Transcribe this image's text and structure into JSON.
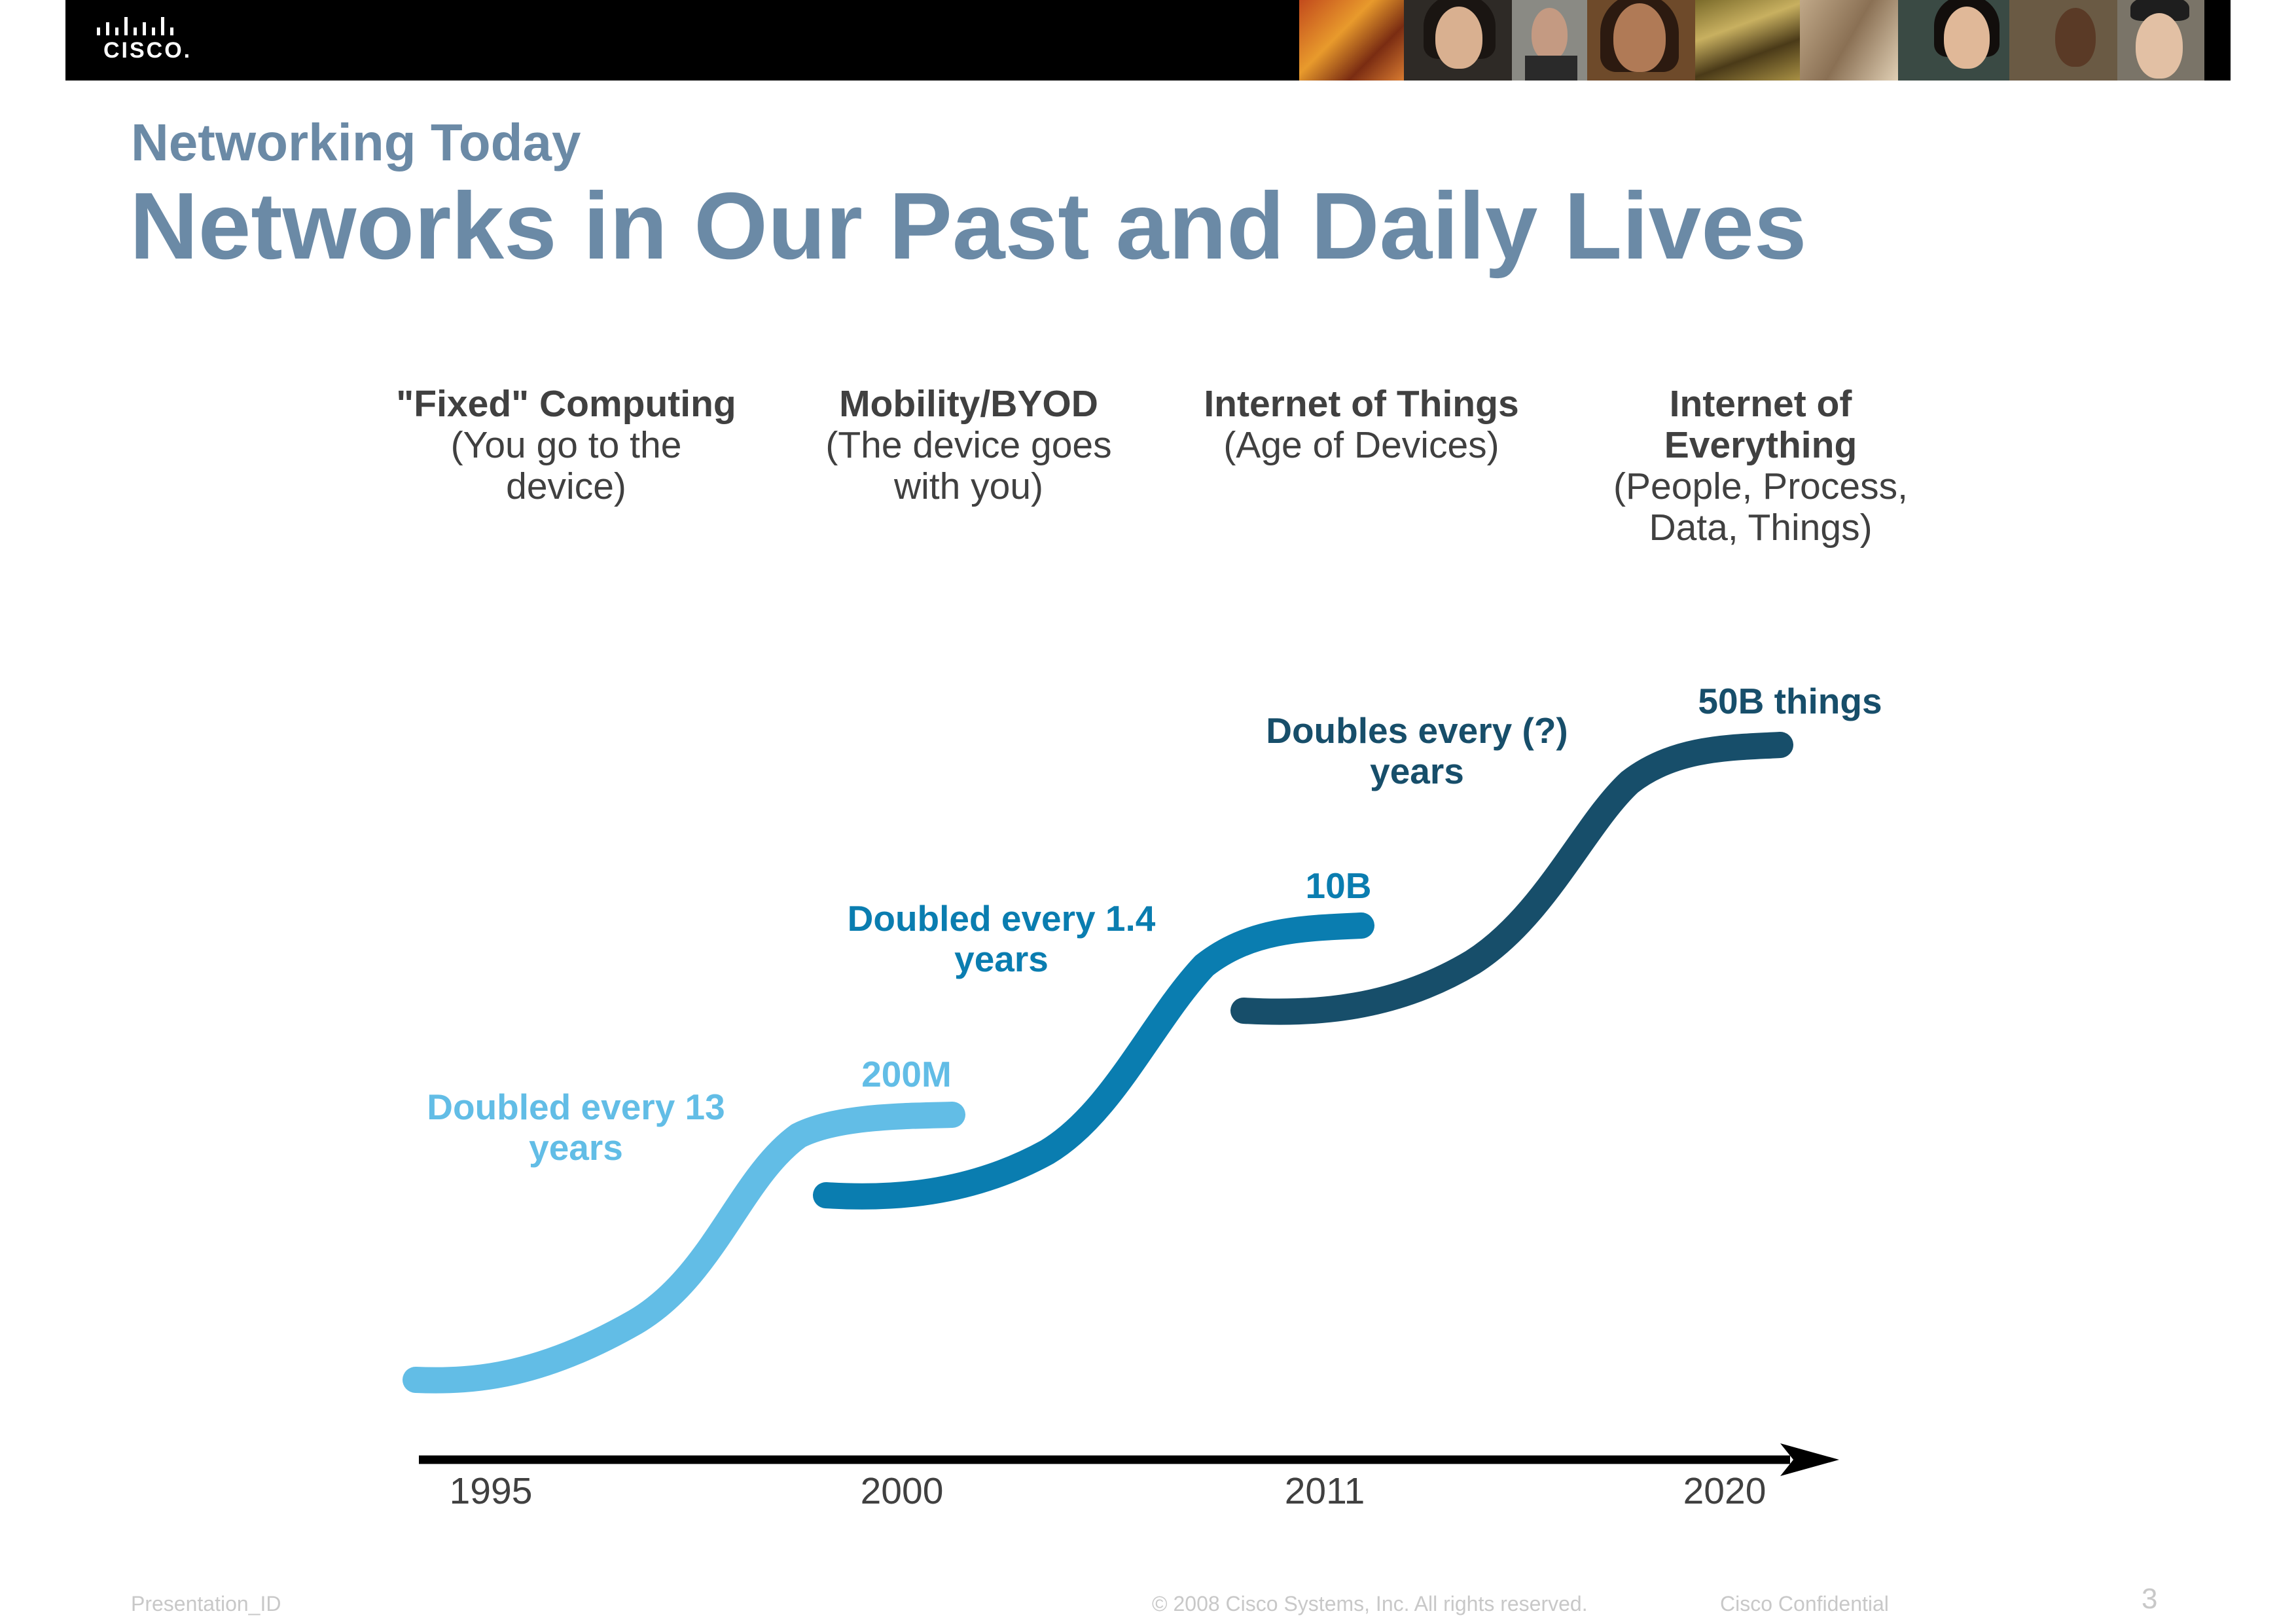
{
  "brand": {
    "logo_text": "CISCO."
  },
  "header": {
    "subtitle": "Networking Today",
    "title": "Networks in Our Past and Daily Lives"
  },
  "eras": [
    {
      "heading": "\"Fixed\" Computing",
      "description": "(You go to the device)"
    },
    {
      "heading": "Mobility/BYOD",
      "description": "(The device goes with you)"
    },
    {
      "heading": "Internet of Things",
      "description": "(Age of Devices)"
    },
    {
      "heading": "Internet of Everything",
      "description": "(People, Process, Data, Things)"
    }
  ],
  "chart_data": {
    "type": "line",
    "x_ticks": [
      "1995",
      "2000",
      "2011",
      "2020"
    ],
    "series": [
      {
        "label_note": "Doubled every 13 years",
        "end_value": "200M",
        "color": "#62bde6"
      },
      {
        "label_note": "Doubled every 1.4 years",
        "end_value": "10B",
        "color": "#0a7db0"
      },
      {
        "label_note": "Doubles every (?) years",
        "end_value": "50B things",
        "color": "#174e6a"
      }
    ],
    "axis_color": "#000000"
  },
  "footer": {
    "presentation_id": "Presentation_ID",
    "copyright": "© 2008 Cisco Systems, Inc. All rights reserved.",
    "confidential": "Cisco Confidential",
    "page_number": "3"
  },
  "colors": {
    "title": "#6b8aa6",
    "body_text": "#404040",
    "banner": "#000000",
    "footer_text": "#c8c8c8"
  }
}
